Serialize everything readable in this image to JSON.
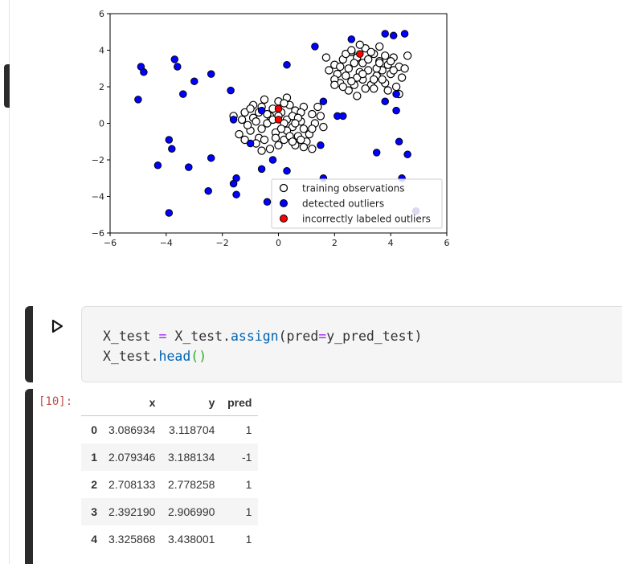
{
  "chart_data": {
    "type": "scatter",
    "xlim": [
      -6,
      6
    ],
    "ylim": [
      -6,
      6
    ],
    "xticks": [
      "−6",
      "−4",
      "−2",
      "0",
      "2",
      "4",
      "6"
    ],
    "yticks": [
      "6",
      "4",
      "2",
      "0",
      "−2",
      "−4",
      "−6"
    ],
    "grid": false,
    "legend_position": "lower-right",
    "colors": {
      "training": "#ffffff",
      "detected": "#0000ff",
      "incorrect": "#ff0000",
      "edge": "#000000"
    },
    "series": [
      {
        "name": "training observations",
        "points": [
          [
            -1.2,
            0.6
          ],
          [
            -0.9,
            0.3
          ],
          [
            -0.6,
            0.9
          ],
          [
            -0.3,
            0.4
          ],
          [
            0.0,
            1.2
          ],
          [
            0.3,
            0.2
          ],
          [
            0.6,
            0.7
          ],
          [
            0.9,
            -0.3
          ],
          [
            1.2,
            0.5
          ],
          [
            -1.0,
            -0.4
          ],
          [
            -0.7,
            -0.8
          ],
          [
            -0.4,
            0.0
          ],
          [
            -0.1,
            -0.5
          ],
          [
            0.2,
            -0.9
          ],
          [
            0.5,
            -0.2
          ],
          [
            0.8,
            0.1
          ],
          [
            1.1,
            -0.6
          ],
          [
            -0.5,
            1.3
          ],
          [
            0.1,
            0.6
          ],
          [
            0.4,
            1.0
          ],
          [
            -0.8,
            0.1
          ],
          [
            -0.2,
            0.8
          ],
          [
            0.7,
            -0.7
          ],
          [
            1.3,
            0.0
          ],
          [
            -1.1,
            -0.1
          ],
          [
            0.0,
            -1.2
          ],
          [
            -0.3,
            -1.4
          ],
          [
            0.5,
            0.4
          ],
          [
            0.9,
            0.9
          ],
          [
            -0.6,
            -0.3
          ],
          [
            0.2,
            0.0
          ],
          [
            -0.9,
            1.0
          ],
          [
            1.0,
            -1.0
          ],
          [
            -1.3,
            0.2
          ],
          [
            0.6,
            -1.2
          ],
          [
            -0.4,
            0.5
          ],
          [
            0.3,
            -0.4
          ],
          [
            1.5,
            0.4
          ],
          [
            -1.4,
            -0.6
          ],
          [
            0.8,
            0.6
          ],
          [
            -0.2,
            0.2
          ],
          [
            0.1,
            -0.3
          ],
          [
            -0.7,
            0.6
          ],
          [
            0.4,
            -0.7
          ],
          [
            1.2,
            -0.3
          ],
          [
            -1.0,
            0.8
          ],
          [
            0.0,
            0.4
          ],
          [
            0.7,
            0.3
          ],
          [
            -0.5,
            -0.9
          ],
          [
            0.3,
            1.4
          ],
          [
            1.6,
            -0.2
          ],
          [
            -1.6,
            0.4
          ],
          [
            0.9,
            -1.3
          ],
          [
            -0.8,
            -1.1
          ],
          [
            0.2,
            1.1
          ],
          [
            -0.1,
            -0.8
          ],
          [
            0.6,
            0.0
          ],
          [
            1.4,
            0.9
          ],
          [
            -1.2,
            -0.9
          ],
          [
            0.5,
            -1.0
          ],
          [
            2.0,
            3.2
          ],
          [
            2.4,
            2.6
          ],
          [
            2.8,
            3.6
          ],
          [
            3.2,
            2.9
          ],
          [
            3.6,
            3.4
          ],
          [
            4.0,
            2.7
          ],
          [
            4.3,
            3.1
          ],
          [
            2.2,
            2.2
          ],
          [
            2.6,
            3.9
          ],
          [
            3.0,
            2.4
          ],
          [
            3.4,
            3.8
          ],
          [
            3.8,
            2.2
          ],
          [
            4.1,
            3.6
          ],
          [
            2.5,
            3.0
          ],
          [
            2.9,
            2.8
          ],
          [
            3.3,
            2.1
          ],
          [
            3.7,
            2.9
          ],
          [
            4.4,
            2.5
          ],
          [
            2.1,
            2.7
          ],
          [
            3.1,
            4.1
          ],
          [
            3.5,
            2.6
          ],
          [
            3.9,
            3.2
          ],
          [
            2.3,
            3.5
          ],
          [
            2.7,
            2.1
          ],
          [
            3.0,
            3.3
          ],
          [
            3.6,
            4.2
          ],
          [
            4.2,
            2.0
          ],
          [
            2.0,
            2.4
          ],
          [
            2.4,
            3.8
          ],
          [
            2.8,
            2.5
          ],
          [
            3.2,
            3.5
          ],
          [
            3.4,
            2.4
          ],
          [
            3.8,
            3.7
          ],
          [
            4.0,
            3.4
          ],
          [
            2.6,
            2.3
          ],
          [
            3.1,
            1.9
          ],
          [
            3.5,
            3.0
          ],
          [
            2.2,
            3.1
          ],
          [
            2.9,
            4.3
          ],
          [
            3.7,
            2.4
          ],
          [
            4.5,
            3.0
          ],
          [
            1.8,
            2.9
          ],
          [
            2.5,
            1.8
          ],
          [
            3.3,
            3.9
          ],
          [
            3.9,
            1.8
          ],
          [
            2.7,
            3.3
          ],
          [
            3.0,
            2.7
          ],
          [
            4.1,
            2.9
          ],
          [
            2.3,
            2.0
          ],
          [
            3.6,
            3.3
          ],
          [
            2.0,
            2.1
          ],
          [
            2.8,
            1.5
          ],
          [
            3.4,
            1.9
          ],
          [
            4.3,
            1.6
          ],
          [
            1.7,
            3.6
          ],
          [
            4.6,
            3.7
          ],
          [
            2.6,
            4.0
          ],
          [
            0.8,
            -0.9
          ],
          [
            -0.6,
            -1.5
          ],
          [
            1.2,
            -1.4
          ]
        ]
      },
      {
        "name": "detected outliers",
        "points": [
          [
            -5.0,
            1.3
          ],
          [
            -4.9,
            3.1
          ],
          [
            -4.8,
            2.8
          ],
          [
            -3.7,
            3.5
          ],
          [
            -3.6,
            3.1
          ],
          [
            -3.4,
            1.6
          ],
          [
            -3.0,
            2.3
          ],
          [
            -2.4,
            2.7
          ],
          [
            -1.7,
            1.8
          ],
          [
            -1.6,
            0.2
          ],
          [
            -3.9,
            -0.9
          ],
          [
            -3.8,
            -1.4
          ],
          [
            -4.3,
            -2.3
          ],
          [
            -3.2,
            -2.4
          ],
          [
            -2.4,
            -1.9
          ],
          [
            -2.5,
            -3.7
          ],
          [
            -1.5,
            -3.0
          ],
          [
            -1.6,
            -3.3
          ],
          [
            -1.5,
            -3.9
          ],
          [
            -3.9,
            -4.9
          ],
          [
            -0.6,
            -2.5
          ],
          [
            -0.2,
            -2.0
          ],
          [
            0.3,
            -2.6
          ],
          [
            1.6,
            -3.0
          ],
          [
            -0.4,
            -4.3
          ],
          [
            -1.0,
            -1.1
          ],
          [
            1.5,
            -1.2
          ],
          [
            1.6,
            1.2
          ],
          [
            1.3,
            4.2
          ],
          [
            0.3,
            3.2
          ],
          [
            2.1,
            0.4
          ],
          [
            2.3,
            0.4
          ],
          [
            2.6,
            4.6
          ],
          [
            3.8,
            4.9
          ],
          [
            4.1,
            4.8
          ],
          [
            4.5,
            4.9
          ],
          [
            4.2,
            0.7
          ],
          [
            4.2,
            1.6
          ],
          [
            3.8,
            1.2
          ],
          [
            4.3,
            -1.0
          ],
          [
            3.5,
            -1.6
          ],
          [
            4.6,
            -1.7
          ],
          [
            4.4,
            -3.0
          ],
          [
            4.9,
            -4.8
          ],
          [
            -0.6,
            0.7
          ]
        ]
      },
      {
        "name": "incorrectly labeled outliers",
        "points": [
          [
            0.0,
            0.8
          ],
          [
            0.0,
            0.2
          ],
          [
            2.9,
            3.8
          ]
        ]
      }
    ]
  },
  "code_cell": {
    "run_icon": "play-outline-icon",
    "line1": {
      "var": "X_test",
      "eq": " = ",
      "obj": "X_test.",
      "fn": "assign",
      "open": "(",
      "arg": "pred",
      "argeq": "=",
      "val": "y_pred_test",
      "close": ")"
    },
    "line2": {
      "obj": "X_test.",
      "fn": "head",
      "parens": "()"
    }
  },
  "output": {
    "exec_count": "[10]:",
    "columns": [
      "",
      "x",
      "y",
      "pred"
    ],
    "rows": [
      [
        "0",
        "3.086934",
        "3.118704",
        "1"
      ],
      [
        "1",
        "2.079346",
        "3.188134",
        "-1"
      ],
      [
        "2",
        "2.708133",
        "2.778258",
        "1"
      ],
      [
        "3",
        "2.392190",
        "2.906990",
        "1"
      ],
      [
        "4",
        "3.325868",
        "3.438001",
        "1"
      ]
    ]
  }
}
